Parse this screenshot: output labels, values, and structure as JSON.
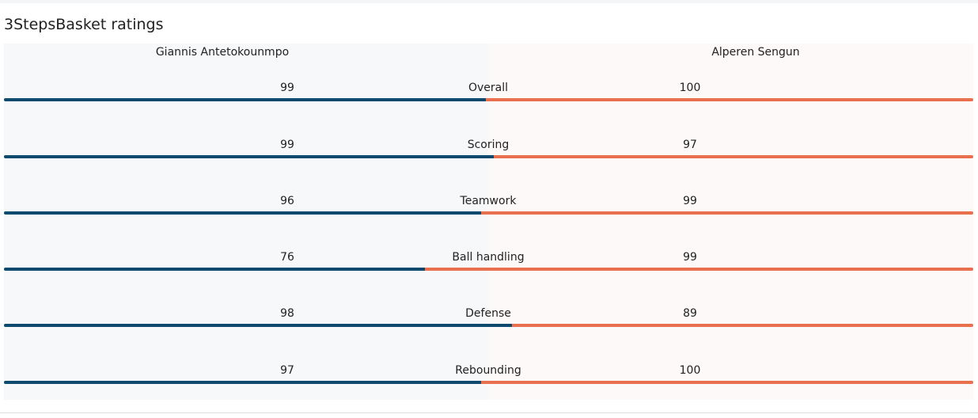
{
  "widget": {
    "title": "3StepsBasket ratings"
  },
  "colors": {
    "left": "#0e4a6e",
    "right": "#e8704f"
  },
  "chart_data": {
    "type": "bar",
    "categories": [
      "Overall",
      "Scoring",
      "Teamwork",
      "Ball handling",
      "Defense",
      "Rebounding"
    ],
    "series": [
      {
        "name": "Giannis Antetokounmpo",
        "values": [
          99,
          99,
          96,
          76,
          98,
          97
        ]
      },
      {
        "name": "Alperen Sengun",
        "values": [
          100,
          97,
          99,
          99,
          89,
          100
        ]
      }
    ],
    "title": "3StepsBasket ratings",
    "xlabel": "",
    "ylabel": "",
    "legend": "top"
  }
}
